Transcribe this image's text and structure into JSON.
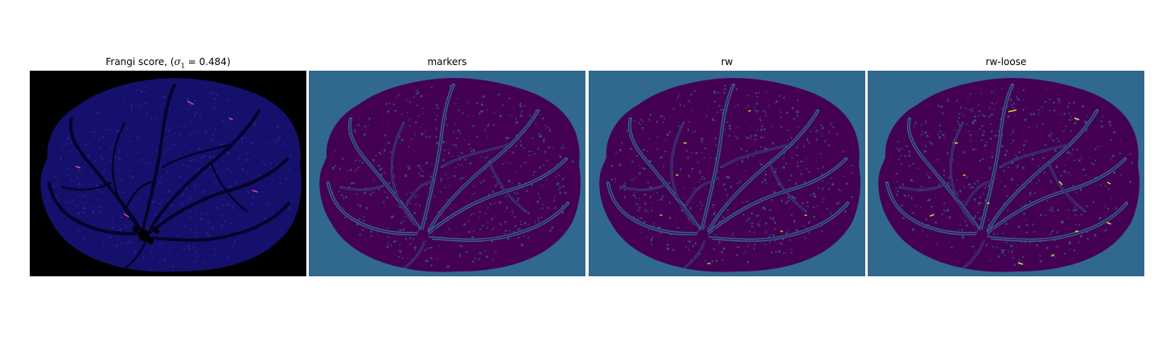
{
  "figure": {
    "panels": [
      {
        "id": "frangi",
        "title_prefix": "Frangi score, (",
        "sigma_symbol": "σ",
        "sigma_subscript": "1",
        "title_suffix": " = 0.484)",
        "background_color": "#000000",
        "blob_color": "#14106b",
        "vessel_color": "#05032a",
        "highlight_color": "#e04a8a"
      },
      {
        "id": "markers",
        "title": "markers",
        "background_color": "#31688e",
        "blob_color": "#440154",
        "vessel_color": "#31688e",
        "highlight_color": "#31688e"
      },
      {
        "id": "rw",
        "title": "rw",
        "background_color": "#31688e",
        "blob_color": "#440154",
        "vessel_color": "#31688e",
        "highlight_color": "#b5de2b"
      },
      {
        "id": "rw-loose",
        "title": "rw-loose",
        "background_color": "#31688e",
        "blob_color": "#440154",
        "vessel_color": "#31688e",
        "highlight_color": "#d2e21b"
      }
    ]
  }
}
